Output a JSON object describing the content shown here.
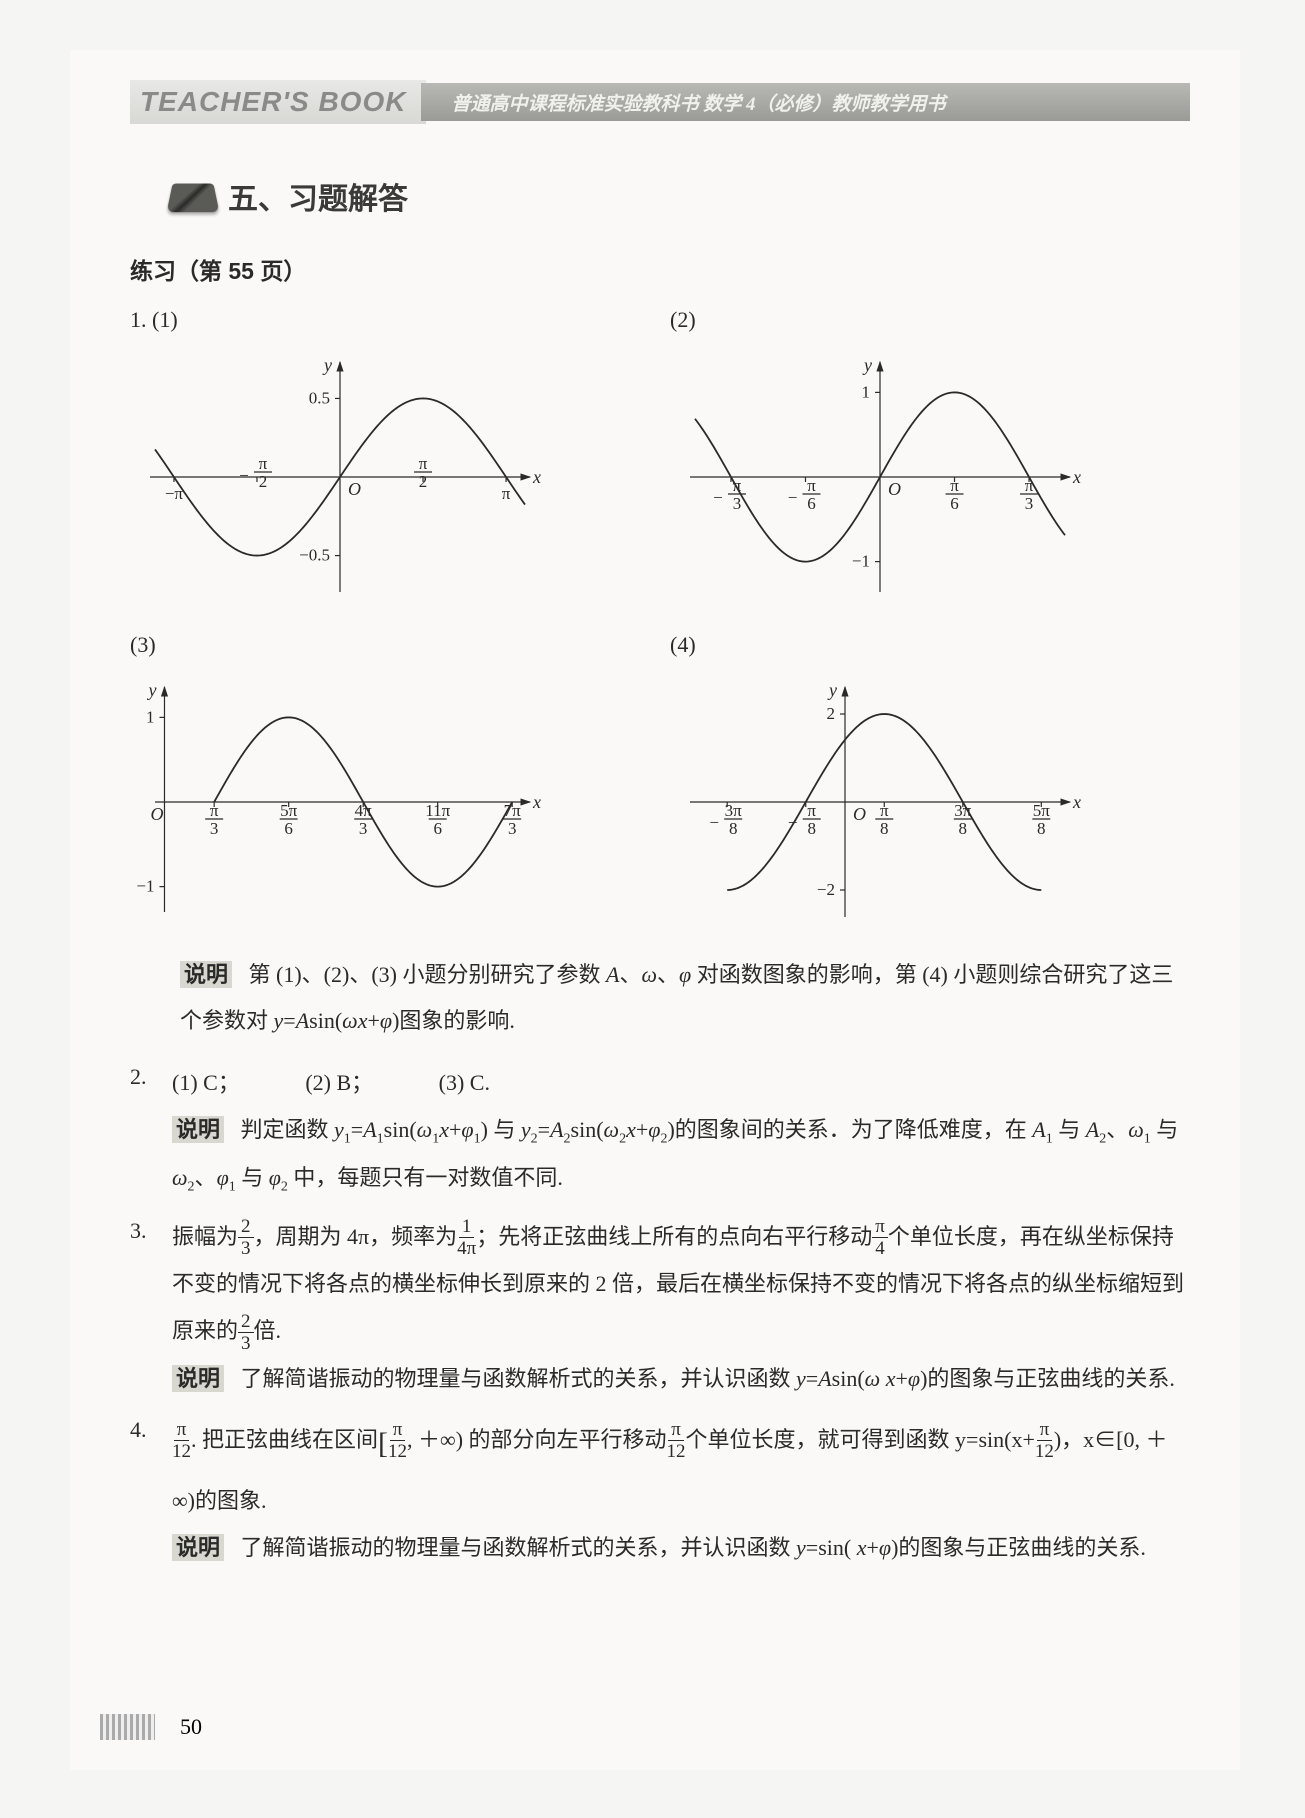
{
  "header": {
    "left": "TEACHER'S BOOK",
    "right": "普通高中课程标准实验教科书  数学 4（必修）教师教学用书"
  },
  "section_title": "五、习题解答",
  "practice_title": "练习（第 55 页）",
  "q1": {
    "label": "1.",
    "sub1": "(1)",
    "sub2": "(2)",
    "sub3": "(3)",
    "sub4": "(4)",
    "chart1": {
      "type": "line",
      "xlim": [
        -3.5,
        3.5
      ],
      "ylim": [
        -0.7,
        0.7
      ],
      "xlabel": "x",
      "ylabel": "y",
      "origin": "O",
      "xticks": [
        {
          "pos": -3.1416,
          "label": "−π"
        },
        {
          "pos": -1.5708,
          "label_frac": [
            "π",
            "2"
          ],
          "neg": true
        },
        {
          "pos": 1.5708,
          "label_frac": [
            "π",
            "2"
          ]
        },
        {
          "pos": 3.1416,
          "label": "π"
        }
      ],
      "yticks": [
        {
          "pos": 0.5,
          "label": "0.5"
        },
        {
          "pos": -0.5,
          "label": "−0.5"
        }
      ],
      "amplitude": 0.5,
      "omega": 1,
      "phase": 0,
      "line_color": "#2a2a28",
      "line_width": 1.8,
      "background_color": "#faf9f7"
    },
    "chart2": {
      "type": "line",
      "xlim": [
        -1.3,
        1.3
      ],
      "ylim": [
        -1.3,
        1.3
      ],
      "xlabel": "x",
      "ylabel": "y",
      "origin": "O",
      "xticks": [
        {
          "pos": -1.0472,
          "label_frac": [
            "π",
            "3"
          ],
          "neg": true,
          "under": true
        },
        {
          "pos": -0.5236,
          "label_frac": [
            "π",
            "6"
          ],
          "neg": true,
          "under": true
        },
        {
          "pos": 0.5236,
          "label_frac": [
            "π",
            "6"
          ],
          "under": true
        },
        {
          "pos": 1.0472,
          "label_frac": [
            "π",
            "3"
          ],
          "under": true
        }
      ],
      "yticks": [
        {
          "pos": 1,
          "label": "1"
        },
        {
          "pos": -1,
          "label": "−1"
        }
      ],
      "amplitude": 1,
      "omega": 3,
      "phase": 0,
      "line_color": "#2a2a28",
      "line_width": 1.8,
      "background_color": "#faf9f7"
    },
    "chart3": {
      "type": "line",
      "xlim": [
        -0.2,
        7.6
      ],
      "ylim": [
        -1.3,
        1.3
      ],
      "xlabel": "x",
      "ylabel": "y",
      "origin": "O",
      "origin_at_left": true,
      "xticks": [
        {
          "pos": 1.0472,
          "label_frac": [
            "π",
            "3"
          ],
          "under": true
        },
        {
          "pos": 2.618,
          "label_frac": [
            "5π",
            "6"
          ],
          "under": true
        },
        {
          "pos": 4.1888,
          "label_frac": [
            "4π",
            "3"
          ],
          "under": true
        },
        {
          "pos": 5.7596,
          "label_frac": [
            "11π",
            "6"
          ],
          "under": true
        },
        {
          "pos": 7.33,
          "label_frac": [
            "7π",
            "3"
          ],
          "under": true
        }
      ],
      "yticks": [
        {
          "pos": 1,
          "label": "1"
        },
        {
          "pos": -1,
          "label": "−1"
        }
      ],
      "amplitude": 1,
      "omega": 1,
      "phase": -1.0472,
      "line_color": "#2a2a28",
      "line_width": 1.8,
      "range_x": [
        1.0472,
        7.33
      ],
      "background_color": "#faf9f7"
    },
    "chart4": {
      "type": "line",
      "xlim": [
        -1.5,
        2.2
      ],
      "ylim": [
        -2.5,
        2.5
      ],
      "xlabel": "x",
      "ylabel": "y",
      "origin": "O",
      "xticks": [
        {
          "pos": -1.178,
          "label_frac": [
            "3π",
            "8"
          ],
          "neg": true,
          "under": true
        },
        {
          "pos": -0.3927,
          "label_frac": [
            "π",
            "8"
          ],
          "neg": true,
          "under": true
        },
        {
          "pos": 0.3927,
          "label_frac": [
            "π",
            "8"
          ],
          "under": true
        },
        {
          "pos": 1.178,
          "label_frac": [
            "3π",
            "8"
          ],
          "under": true
        },
        {
          "pos": 1.963,
          "label_frac": [
            "5π",
            "8"
          ],
          "under": true
        }
      ],
      "yticks": [
        {
          "pos": 2,
          "label": "2"
        },
        {
          "pos": -2,
          "label": "−2"
        }
      ],
      "amplitude": 2,
      "omega": 2,
      "phase": 0.7854,
      "line_color": "#2a2a28",
      "line_width": 1.8,
      "range_x": [
        -1.178,
        1.963
      ],
      "background_color": "#faf9f7"
    }
  },
  "desc1": {
    "label": "说明",
    "text_a": "第 (1)、(2)、(3) 小题分别研究了参数 A、ω、φ 对函数图象的影响，第 (4) 小题则综合研究了这三个参数对 y=Asin(ωx+φ)图象的影响."
  },
  "q2": {
    "label": "2.",
    "a1": "(1) C；",
    "a2": "(2) B；",
    "a3": "(3) C.",
    "desc_label": "说明",
    "desc_text": "判定函数 y₁=A₁sin(ω₁x+φ₁) 与 y₂=A₂sin(ω₂x+φ₂) 的图象间的关系．为了降低难度，在 A₁ 与 A₂、ω₁ 与 ω₂、φ₁ 与 φ₂ 中，每题只有一对数值不同."
  },
  "q3": {
    "label": "3.",
    "text_pre": "振幅为",
    "frac1_t": "2",
    "frac1_b": "3",
    "text_mid1": "，周期为 4π，频率为",
    "frac2_t": "1",
    "frac2_b": "4π",
    "text_mid2": "；先将正弦曲线上所有的点向右平行移动",
    "frac3_t": "π",
    "frac3_b": "4",
    "text_mid3": "个单位长度，再在纵坐标保持不变的情况下将各点的横坐标伸长到原来的 2 倍，最后在横坐标保持不变的情况下将各点的纵坐标缩短到原来的",
    "frac4_t": "2",
    "frac4_b": "3",
    "text_end": "倍.",
    "desc_label": "说明",
    "desc_text": "了解简谐振动的物理量与函数解析式的关系，并认识函数 y=Asin(ωx+φ) 的图象与正弦曲线的关系."
  },
  "q4": {
    "label": "4.",
    "frac1_t": "π",
    "frac1_b": "12",
    "text_a": ". 把正弦曲线在区间",
    "lb": "[",
    "frac2_t": "π",
    "frac2_b": "12",
    "text_b": ", ＋∞) 的部分向左平行移动",
    "frac3_t": "π",
    "frac3_b": "12",
    "text_c": "个单位长度，就可得到函数 y=sin(x+",
    "frac4_t": "π",
    "frac4_b": "12",
    "text_d": ")，x∈[0, ＋∞)的图象.",
    "desc_label": "说明",
    "desc_text": "了解简谐振动的物理量与函数解析式的关系，并认识函数 y=sin( x+φ)的图象与正弦曲线的关系."
  },
  "page_number": "50"
}
